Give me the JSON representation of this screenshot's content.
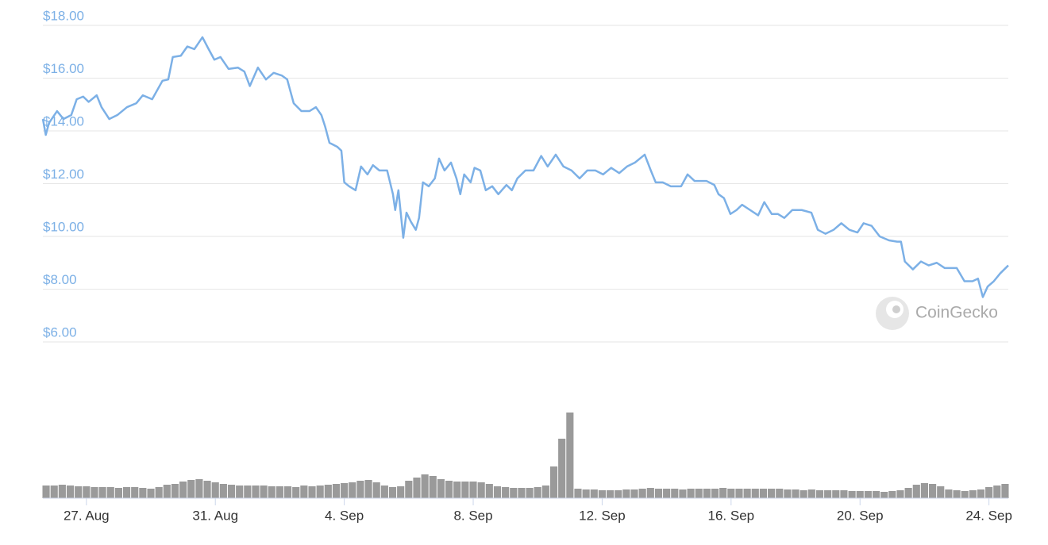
{
  "chart_data": [
    {
      "type": "line",
      "watermark": "CoinGecko",
      "xlim": [
        25.65,
        55.6
      ],
      "xticks": [
        {
          "value": 27,
          "label": "27. Aug"
        },
        {
          "value": 31,
          "label": "31. Aug"
        },
        {
          "value": 35,
          "label": "4. Sep"
        },
        {
          "value": 39,
          "label": "8. Sep"
        },
        {
          "value": 43,
          "label": "12. Sep"
        },
        {
          "value": 47,
          "label": "16. Sep"
        },
        {
          "value": 51,
          "label": "20. Sep"
        },
        {
          "value": 55,
          "label": "24. Sep"
        }
      ],
      "ylim": [
        6,
        18
      ],
      "yticks": [
        {
          "value": 6,
          "label": "$6.00"
        },
        {
          "value": 8,
          "label": "$8.00"
        },
        {
          "value": 10,
          "label": "$10.00"
        },
        {
          "value": 12,
          "label": "$12.00"
        },
        {
          "value": 14,
          "label": "$14.00"
        },
        {
          "value": 16,
          "label": "$16.00"
        },
        {
          "value": 18,
          "label": "$18.00"
        }
      ],
      "grid": true,
      "series": [
        {
          "color": "#7cb0e6",
          "x": [
            25.65,
            25.74,
            25.84,
            26.09,
            26.29,
            26.53,
            26.7,
            26.9,
            27.07,
            27.32,
            27.47,
            27.71,
            27.96,
            28.26,
            28.55,
            28.75,
            29.04,
            29.36,
            29.54,
            29.68,
            29.93,
            30.13,
            30.35,
            30.6,
            30.77,
            30.97,
            31.16,
            31.41,
            31.7,
            31.9,
            32.07,
            32.32,
            32.57,
            32.81,
            33.06,
            33.23,
            33.43,
            33.67,
            33.92,
            34.12,
            34.29,
            34.41,
            34.54,
            34.78,
            34.91,
            35.0,
            35.15,
            35.35,
            35.52,
            35.72,
            35.89,
            36.09,
            36.33,
            36.51,
            36.58,
            36.68,
            36.83,
            36.93,
            37.07,
            37.22,
            37.32,
            37.44,
            37.62,
            37.81,
            37.94,
            38.11,
            38.31,
            38.48,
            38.6,
            38.72,
            38.92,
            39.04,
            39.22,
            39.39,
            39.59,
            39.78,
            40.03,
            40.2,
            40.37,
            40.62,
            40.87,
            41.11,
            41.31,
            41.56,
            41.8,
            42.05,
            42.3,
            42.54,
            42.79,
            43.03,
            43.28,
            43.53,
            43.77,
            44.02,
            44.32,
            44.51,
            44.66,
            44.88,
            45.13,
            45.45,
            45.65,
            45.87,
            46.24,
            46.48,
            46.61,
            46.78,
            46.98,
            47.17,
            47.34,
            47.59,
            47.84,
            48.03,
            48.26,
            48.45,
            48.65,
            48.9,
            49.19,
            49.49,
            49.69,
            49.93,
            50.18,
            50.42,
            50.67,
            50.92,
            51.11,
            51.36,
            51.61,
            51.9,
            52.15,
            52.27,
            52.39,
            52.64,
            52.89,
            53.13,
            53.38,
            53.63,
            54.0,
            54.24,
            54.49,
            54.66,
            54.81,
            54.96,
            55.15,
            55.35,
            55.6
          ],
          "values": [
            14.45,
            13.85,
            14.3,
            14.75,
            14.45,
            14.6,
            15.2,
            15.3,
            15.1,
            15.35,
            14.9,
            14.45,
            14.6,
            14.9,
            15.05,
            15.35,
            15.2,
            15.9,
            15.95,
            16.8,
            16.85,
            17.2,
            17.1,
            17.55,
            17.15,
            16.7,
            16.8,
            16.35,
            16.4,
            16.25,
            15.7,
            16.4,
            15.95,
            16.2,
            16.1,
            15.95,
            15.05,
            14.75,
            14.75,
            14.9,
            14.6,
            14.15,
            13.55,
            13.4,
            13.25,
            12.05,
            11.9,
            11.75,
            12.65,
            12.35,
            12.7,
            12.5,
            12.5,
            11.6,
            11.0,
            11.75,
            9.95,
            10.9,
            10.55,
            10.25,
            10.7,
            12.05,
            11.9,
            12.2,
            12.95,
            12.5,
            12.8,
            12.2,
            11.6,
            12.35,
            12.05,
            12.6,
            12.5,
            11.75,
            11.9,
            11.6,
            11.95,
            11.75,
            12.2,
            12.5,
            12.5,
            13.05,
            12.65,
            13.1,
            12.65,
            12.5,
            12.2,
            12.5,
            12.5,
            12.35,
            12.6,
            12.4,
            12.65,
            12.8,
            13.1,
            12.5,
            12.05,
            12.05,
            11.9,
            11.9,
            12.35,
            12.1,
            12.1,
            11.95,
            11.6,
            11.45,
            10.85,
            11.0,
            11.2,
            11.0,
            10.8,
            11.3,
            10.85,
            10.85,
            10.7,
            11.0,
            11.0,
            10.9,
            10.25,
            10.1,
            10.25,
            10.5,
            10.25,
            10.15,
            10.5,
            10.4,
            10.0,
            9.85,
            9.8,
            9.8,
            9.05,
            8.75,
            9.05,
            8.9,
            9.0,
            8.8,
            8.8,
            8.3,
            8.3,
            8.4,
            7.7,
            8.1,
            8.3,
            8.6,
            8.9
          ]
        }
      ]
    },
    {
      "type": "bar",
      "xlim": [
        25.65,
        55.6
      ],
      "ylim": [
        0,
        120
      ],
      "color": "#9a9a9a",
      "x": [
        25.75,
        26,
        26.25,
        26.5,
        26.75,
        27,
        27.25,
        27.5,
        27.75,
        28,
        28.25,
        28.5,
        28.75,
        29,
        29.25,
        29.5,
        29.75,
        30,
        30.25,
        30.5,
        30.75,
        31,
        31.25,
        31.5,
        31.75,
        32,
        32.25,
        32.5,
        32.75,
        33,
        33.25,
        33.5,
        33.75,
        34,
        34.25,
        34.5,
        34.75,
        35,
        35.25,
        35.5,
        35.75,
        36,
        36.25,
        36.5,
        36.75,
        37,
        37.25,
        37.5,
        37.75,
        38,
        38.25,
        38.5,
        38.75,
        39,
        39.25,
        39.5,
        39.75,
        40,
        40.25,
        40.5,
        40.75,
        41,
        41.25,
        41.5,
        41.75,
        42,
        42.25,
        42.5,
        42.75,
        43,
        43.25,
        43.5,
        43.75,
        44,
        44.25,
        44.5,
        44.75,
        45,
        45.25,
        45.5,
        45.75,
        46,
        46.25,
        46.5,
        46.75,
        47,
        47.25,
        47.5,
        47.75,
        48,
        48.25,
        48.5,
        48.75,
        49,
        49.25,
        49.5,
        49.75,
        50,
        50.25,
        50.5,
        50.75,
        51,
        51.25,
        51.5,
        51.75,
        52,
        52.25,
        52.5,
        52.75,
        53,
        53.25,
        53.5,
        53.75,
        54,
        54.25,
        54.5,
        54.75,
        55,
        55.25,
        55.5
      ],
      "values": [
        16,
        16,
        17,
        16,
        15,
        15,
        14,
        14,
        14,
        13,
        14,
        14,
        13,
        12,
        14,
        17,
        18,
        21,
        23,
        24,
        22,
        20,
        18,
        17,
        16,
        16,
        16,
        16,
        15,
        15,
        15,
        14,
        16,
        15,
        16,
        17,
        18,
        19,
        20,
        22,
        23,
        20,
        16,
        14,
        15,
        22,
        26,
        30,
        28,
        24,
        22,
        21,
        21,
        21,
        20,
        18,
        15,
        14,
        13,
        13,
        13,
        14,
        16,
        40,
        75,
        108,
        12,
        11,
        11,
        10,
        10,
        10,
        11,
        11,
        12,
        13,
        12,
        12,
        12,
        11,
        12,
        12,
        12,
        12,
        13,
        12,
        12,
        12,
        12,
        12,
        12,
        12,
        11,
        11,
        10,
        11,
        10,
        10,
        10,
        10,
        9,
        9,
        9,
        9,
        8,
        9,
        10,
        13,
        17,
        19,
        18,
        15,
        11,
        10,
        9,
        10,
        11,
        14,
        16,
        18
      ]
    }
  ]
}
